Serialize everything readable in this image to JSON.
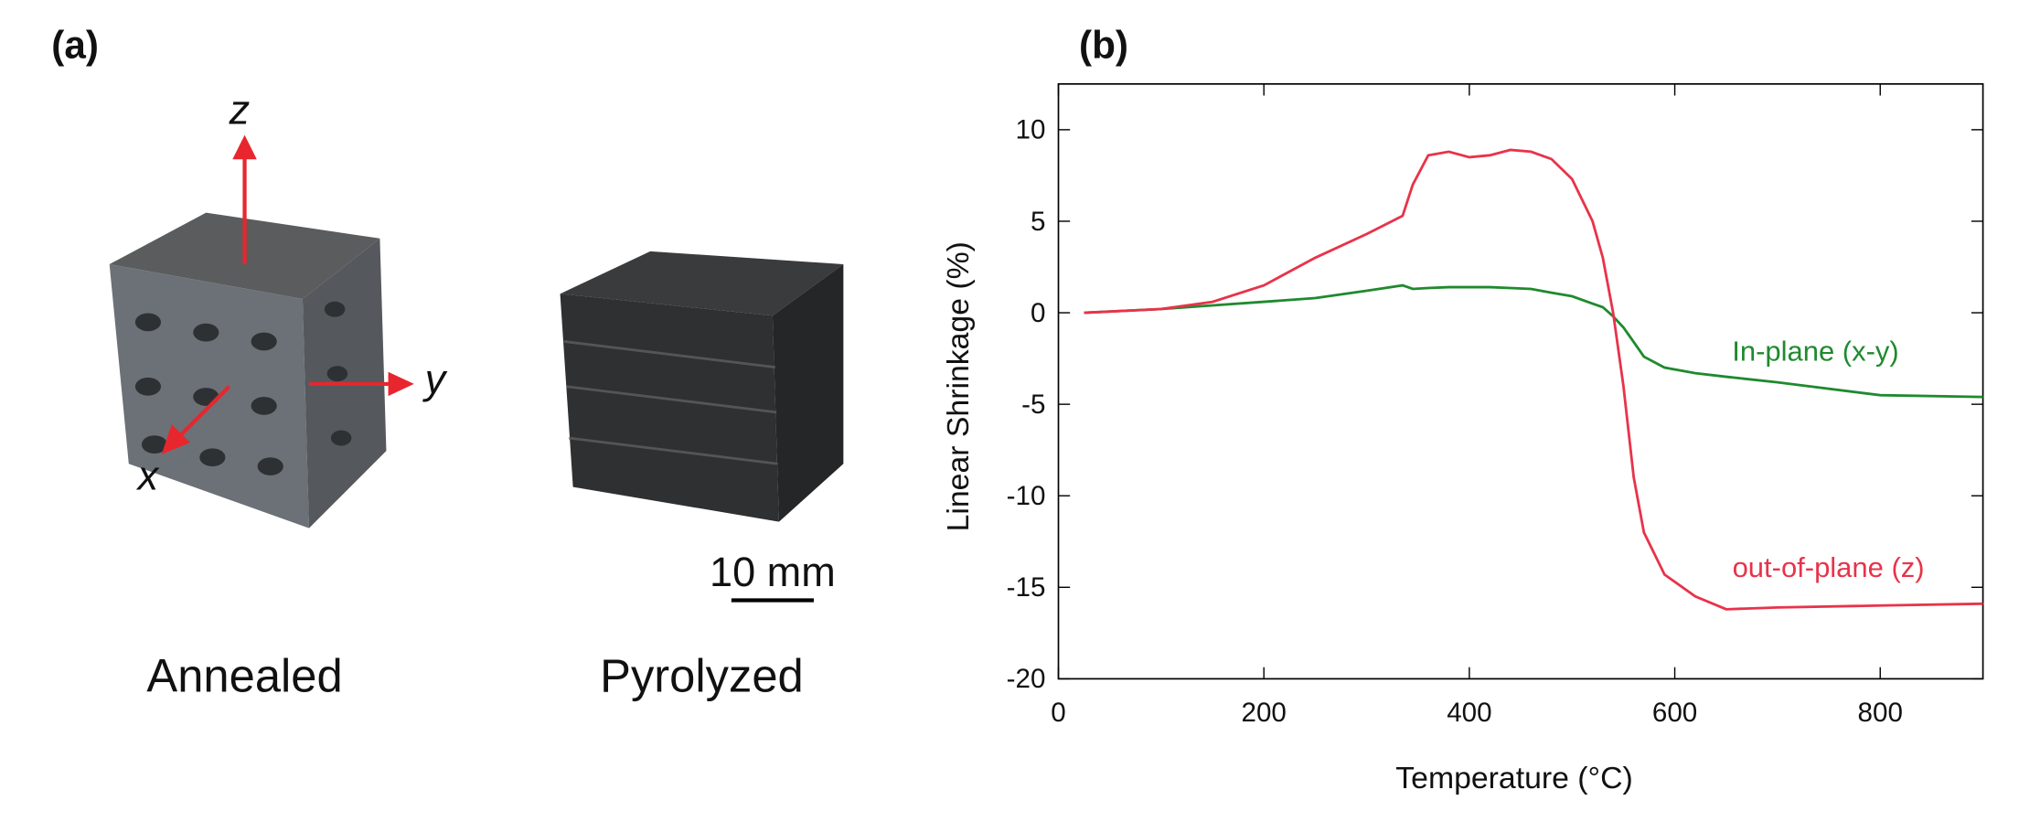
{
  "panel_a": {
    "label": "(a)",
    "axes": {
      "z": "z",
      "y": "y",
      "x": "x"
    },
    "scale_bar": "10 mm",
    "samples": [
      "Annealed",
      "Pyrolyzed"
    ]
  },
  "chart_data": {
    "type": "line",
    "panel_label": "(b)",
    "x_label": "Temperature (°C)",
    "y_label": "Linear Shrinkage (%)",
    "x": [
      25,
      100,
      150,
      200,
      250,
      300,
      335,
      345,
      360,
      380,
      400,
      420,
      440,
      460,
      480,
      500,
      520,
      530,
      540,
      550,
      560,
      570,
      590,
      620,
      650,
      700,
      800,
      900
    ],
    "series": [
      {
        "name": "In-plane (x-y)",
        "color": "#1f8a2e",
        "values": [
          0,
          0.2,
          0.4,
          0.6,
          0.8,
          1.2,
          1.5,
          1.3,
          1.35,
          1.4,
          1.4,
          1.4,
          1.35,
          1.3,
          1.1,
          0.9,
          0.5,
          0.3,
          -0.2,
          -0.8,
          -1.6,
          -2.4,
          -3.0,
          -3.3,
          -3.5,
          -3.8,
          -4.5,
          -4.6
        ]
      },
      {
        "name": "out-of-plane (z)",
        "color": "#e8334a",
        "values": [
          0,
          0.2,
          0.6,
          1.5,
          3,
          4.3,
          5.3,
          7,
          8.6,
          8.8,
          8.5,
          8.6,
          8.9,
          8.8,
          8.4,
          7.3,
          5,
          3,
          0,
          -4,
          -9,
          -12,
          -14.3,
          -15.5,
          -16.2,
          -16.1,
          -16,
          -15.9
        ]
      }
    ],
    "xlim": [
      0,
      900
    ],
    "xticks": [
      0,
      200,
      400,
      600,
      800
    ],
    "ylim": [
      -20,
      12.5
    ],
    "yticks": [
      -20,
      -15,
      -10,
      -5,
      0,
      5,
      10
    ]
  }
}
